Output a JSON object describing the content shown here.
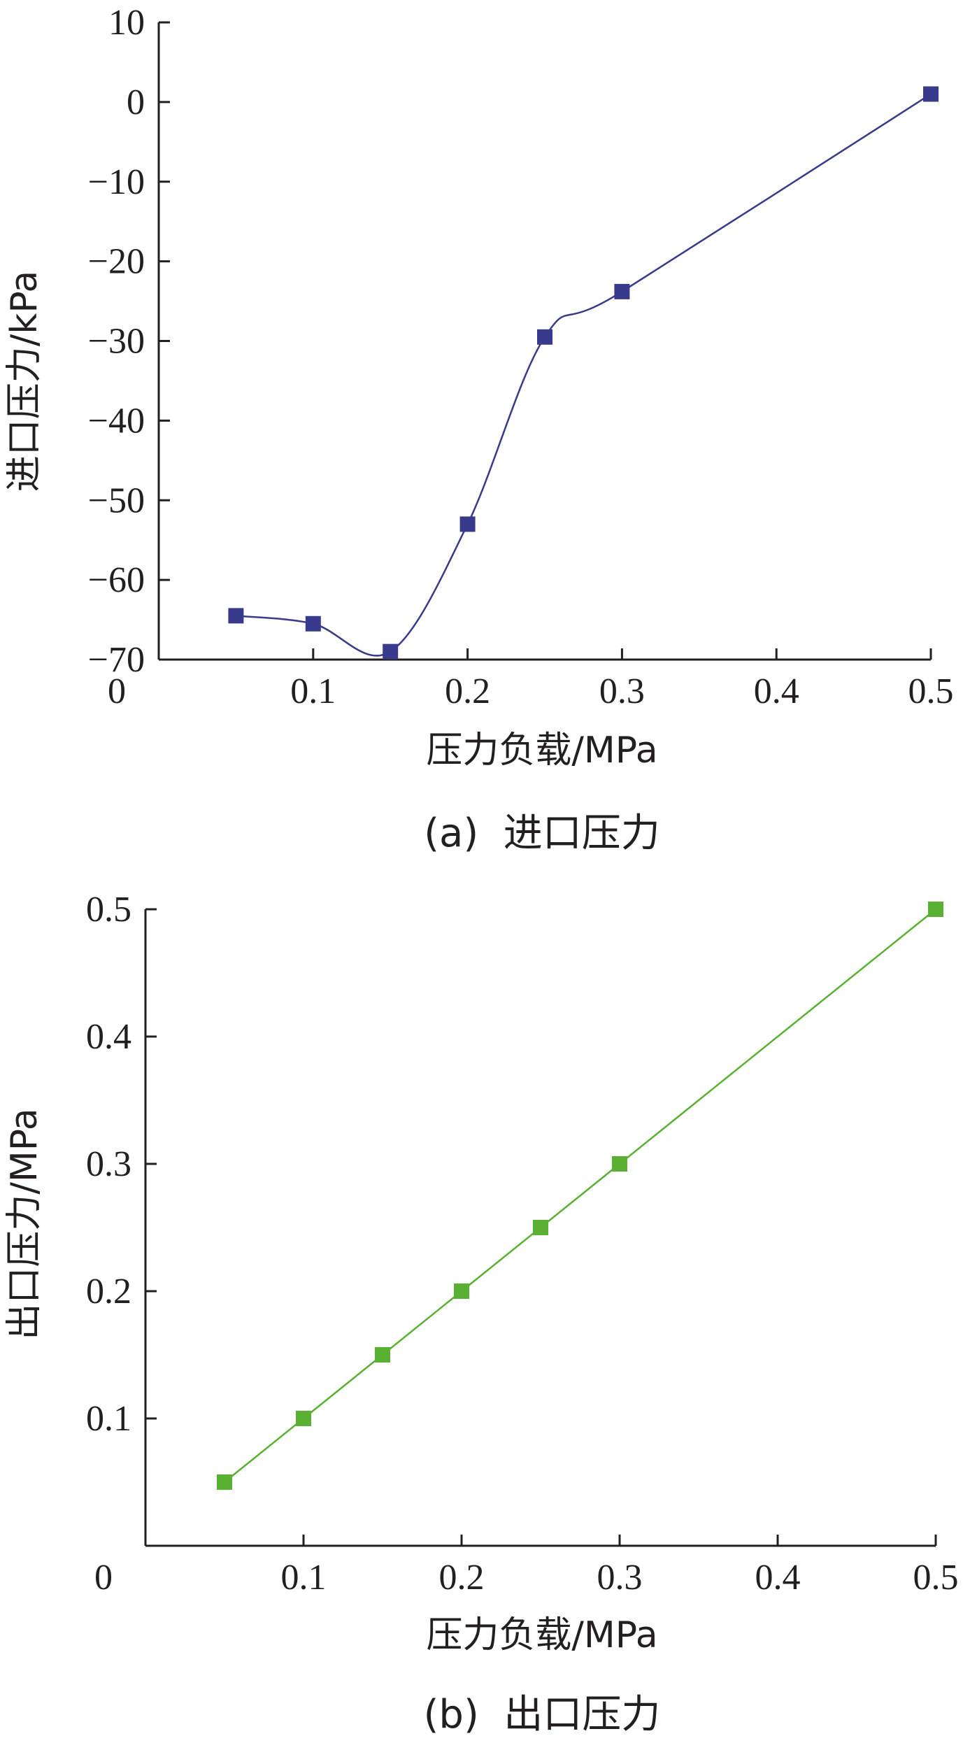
{
  "chart_data": [
    {
      "type": "line",
      "title": "",
      "caption": "(a)  进口压力",
      "xlabel": "压力负载/MPa",
      "ylabel": "进口压力/kPa",
      "xlim": [
        0,
        0.5
      ],
      "ylim": [
        -70,
        10
      ],
      "x_ticks": [
        "0",
        "0.1",
        "0.2",
        "0.3",
        "0.4",
        "0.5"
      ],
      "y_ticks": [
        "10",
        "0",
        "−10",
        "−20",
        "−30",
        "−40",
        "−50",
        "−60",
        "−70"
      ],
      "smooth": true,
      "marker": "square",
      "grid": false,
      "color": "#3a3a8c",
      "series": [
        {
          "x": [
            0.05,
            0.1,
            0.15,
            0.2,
            0.25,
            0.3,
            0.5
          ],
          "y": [
            -64.5,
            -65.5,
            -69.0,
            -53.0,
            -29.5,
            -23.8,
            1.0
          ]
        }
      ]
    },
    {
      "type": "line",
      "title": "",
      "caption": "(b)  出口压力",
      "xlabel": "压力负载/MPa",
      "ylabel": "出口压力/MPa",
      "xlim": [
        0,
        0.5
      ],
      "ylim": [
        0,
        0.5
      ],
      "x_ticks": [
        "0",
        "0.1",
        "0.2",
        "0.3",
        "0.4",
        "0.5"
      ],
      "y_ticks": [
        "0.5",
        "0.4",
        "0.3",
        "0.2",
        "0.1"
      ],
      "smooth": false,
      "marker": "square",
      "grid": false,
      "color": "#5ab033",
      "series": [
        {
          "x": [
            0.05,
            0.1,
            0.15,
            0.2,
            0.25,
            0.3,
            0.5
          ],
          "y": [
            0.05,
            0.1,
            0.15,
            0.2,
            0.25,
            0.3,
            0.5
          ]
        }
      ]
    }
  ]
}
